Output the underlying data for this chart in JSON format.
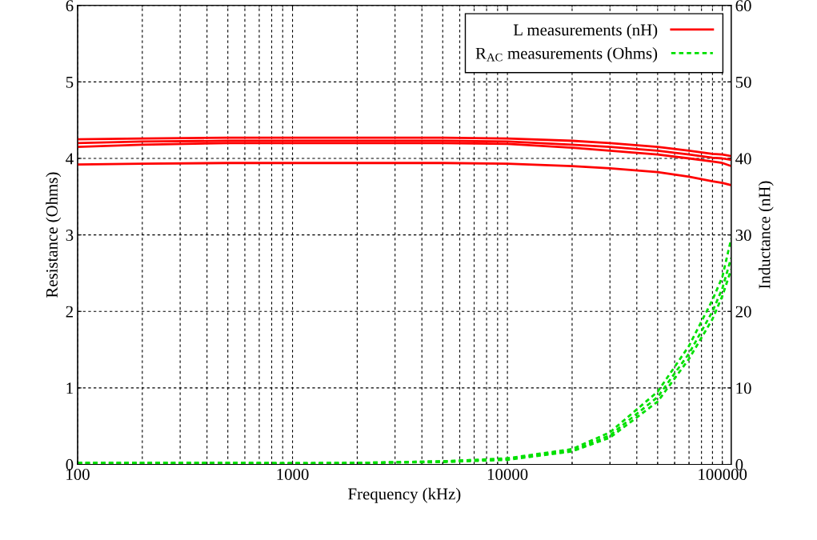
{
  "chart_data": {
    "type": "line",
    "xlabel": "Frequency (kHz)",
    "ylabel": "Resistance (Ohms)",
    "y2label": "Inductance (nH)",
    "log": "x",
    "grid": true,
    "legend": "top right",
    "marker": "none",
    "xlim": [
      100,
      110000
    ],
    "xticks": [
      100,
      1000,
      10000,
      100000
    ],
    "ylim": [
      0,
      6
    ],
    "yticks": [
      0,
      1,
      2,
      3,
      4,
      5,
      6
    ],
    "y2lim": [
      0,
      60
    ],
    "y2ticks": [
      0,
      10,
      20,
      30,
      40,
      50,
      60
    ],
    "x": [
      100,
      200,
      500,
      1000,
      2000,
      5000,
      10000,
      20000,
      30000,
      50000,
      70000,
      90000,
      100000,
      110000
    ],
    "series": [
      {
        "name": "L measurements (nH)",
        "color": "#ff0000",
        "axis": "y2",
        "line_style": "solid",
        "values": [
          42.5,
          42.6,
          42.7,
          42.7,
          42.7,
          42.7,
          42.6,
          42.3,
          42.0,
          41.5,
          41.0,
          40.6,
          40.5,
          40.3
        ]
      },
      {
        "color": "#ff0000",
        "axis": "y2",
        "line_style": "solid",
        "values": [
          42.0,
          42.2,
          42.3,
          42.3,
          42.3,
          42.3,
          42.2,
          41.8,
          41.5,
          41.0,
          40.5,
          40.1,
          40.0,
          39.8
        ]
      },
      {
        "color": "#ff0000",
        "axis": "y2",
        "line_style": "solid",
        "values": [
          41.5,
          41.8,
          42.0,
          42.0,
          42.0,
          42.0,
          41.9,
          41.4,
          41.0,
          40.5,
          40.0,
          39.6,
          39.4,
          39.0
        ]
      },
      {
        "color": "#ff0000",
        "axis": "y2",
        "line_style": "solid",
        "values": [
          39.2,
          39.3,
          39.4,
          39.4,
          39.4,
          39.4,
          39.3,
          39.0,
          38.7,
          38.2,
          37.6,
          37.0,
          36.8,
          36.5
        ]
      },
      {
        "name": "R$_{AC}$ measurements (Ohms)",
        "color": "#00e000",
        "axis": "y",
        "line_style": "dashed",
        "values": [
          0.02,
          0.02,
          0.02,
          0.02,
          0.02,
          0.04,
          0.08,
          0.2,
          0.42,
          0.95,
          1.55,
          2.15,
          2.45,
          2.95
        ]
      },
      {
        "color": "#00e000",
        "axis": "y",
        "line_style": "dashed",
        "values": [
          0.02,
          0.02,
          0.02,
          0.01,
          0.02,
          0.04,
          0.07,
          0.18,
          0.38,
          0.88,
          1.45,
          2.0,
          2.3,
          2.7
        ]
      },
      {
        "color": "#00e000",
        "axis": "y",
        "line_style": "dashed",
        "values": [
          0.02,
          0.02,
          0.02,
          0.01,
          0.02,
          0.03,
          0.06,
          0.17,
          0.35,
          0.82,
          1.38,
          1.9,
          2.2,
          2.55
        ]
      }
    ]
  }
}
